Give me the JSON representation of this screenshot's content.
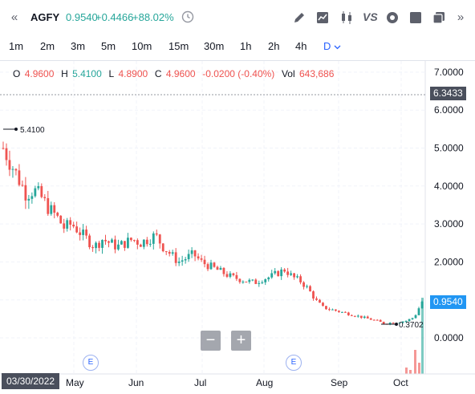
{
  "header": {
    "symbol": "AGFY",
    "last": "0.9540",
    "change": "+0.4466",
    "change_pct": "+88.02%",
    "compare_label": "VS"
  },
  "intervals": [
    "1m",
    "2m",
    "3m",
    "5m",
    "10m",
    "15m",
    "30m",
    "1h",
    "2h",
    "4h",
    "D"
  ],
  "active_interval": "D",
  "legend": {
    "o_key": "O",
    "o_val": "4.9600",
    "h_key": "H",
    "h_val": "5.4100",
    "l_key": "L",
    "l_val": "4.8900",
    "c_key": "C",
    "c_val": "4.9600",
    "chg": "-0.0200 (-0.40%)",
    "vol_key": "Vol",
    "vol_val": "643,686"
  },
  "crosshair_price": "6.3433",
  "last_price_badge": "0.9540",
  "high_marker": "5.4100",
  "low_marker": "0.3702",
  "cursor_date": "03/30/2022",
  "earnings_label": "E",
  "zoom": {
    "out": "−",
    "in": "+"
  },
  "colors": {
    "up": "#26a69a",
    "down": "#ef5350",
    "accent": "#2962ff",
    "badge": "#2196f3"
  },
  "chart_data": {
    "type": "candlestick",
    "y_ticks": [
      "7.0000",
      "6.0000",
      "5.0000",
      "4.0000",
      "3.0000",
      "2.0000",
      "1.0000",
      "0.0000"
    ],
    "x_ticks": [
      "May",
      "Jun",
      "Jul",
      "Aug",
      "Sep",
      "Oct"
    ],
    "ylim": [
      -0.8,
      7.3
    ],
    "close_path": [
      [
        0,
        5.0
      ],
      [
        2,
        4.6
      ],
      [
        4,
        4.2
      ],
      [
        6,
        3.8
      ],
      [
        8,
        3.9
      ],
      [
        10,
        3.7
      ],
      [
        12,
        3.4
      ],
      [
        14,
        3.2
      ],
      [
        16,
        2.9
      ],
      [
        18,
        3.0
      ],
      [
        20,
        2.8
      ],
      [
        22,
        2.6
      ],
      [
        24,
        2.4
      ],
      [
        26,
        2.6
      ],
      [
        28,
        2.5
      ],
      [
        30,
        2.4
      ],
      [
        32,
        2.5
      ],
      [
        34,
        2.6
      ],
      [
        36,
        2.5
      ],
      [
        38,
        2.6
      ],
      [
        40,
        2.7
      ],
      [
        42,
        2.4
      ],
      [
        44,
        2.2
      ],
      [
        46,
        2.0
      ],
      [
        48,
        2.1
      ],
      [
        50,
        2.2
      ],
      [
        52,
        2.0
      ],
      [
        54,
        1.9
      ],
      [
        56,
        1.8
      ],
      [
        58,
        1.7
      ],
      [
        60,
        1.6
      ],
      [
        62,
        1.55
      ],
      [
        64,
        1.5
      ],
      [
        66,
        1.45
      ],
      [
        68,
        1.55
      ],
      [
        70,
        1.6
      ],
      [
        72,
        1.7
      ],
      [
        74,
        1.8
      ],
      [
        76,
        1.6
      ],
      [
        78,
        1.5
      ],
      [
        80,
        1.3
      ],
      [
        82,
        1.0
      ],
      [
        84,
        0.8
      ],
      [
        86,
        0.75
      ],
      [
        88,
        0.7
      ],
      [
        90,
        0.65
      ],
      [
        92,
        0.6
      ],
      [
        94,
        0.55
      ],
      [
        96,
        0.5
      ],
      [
        98,
        0.45
      ],
      [
        100,
        0.38
      ],
      [
        102,
        0.4
      ],
      [
        104,
        0.42
      ],
      [
        106,
        0.45
      ],
      [
        108,
        0.55
      ],
      [
        110,
        0.95
      ]
    ]
  }
}
